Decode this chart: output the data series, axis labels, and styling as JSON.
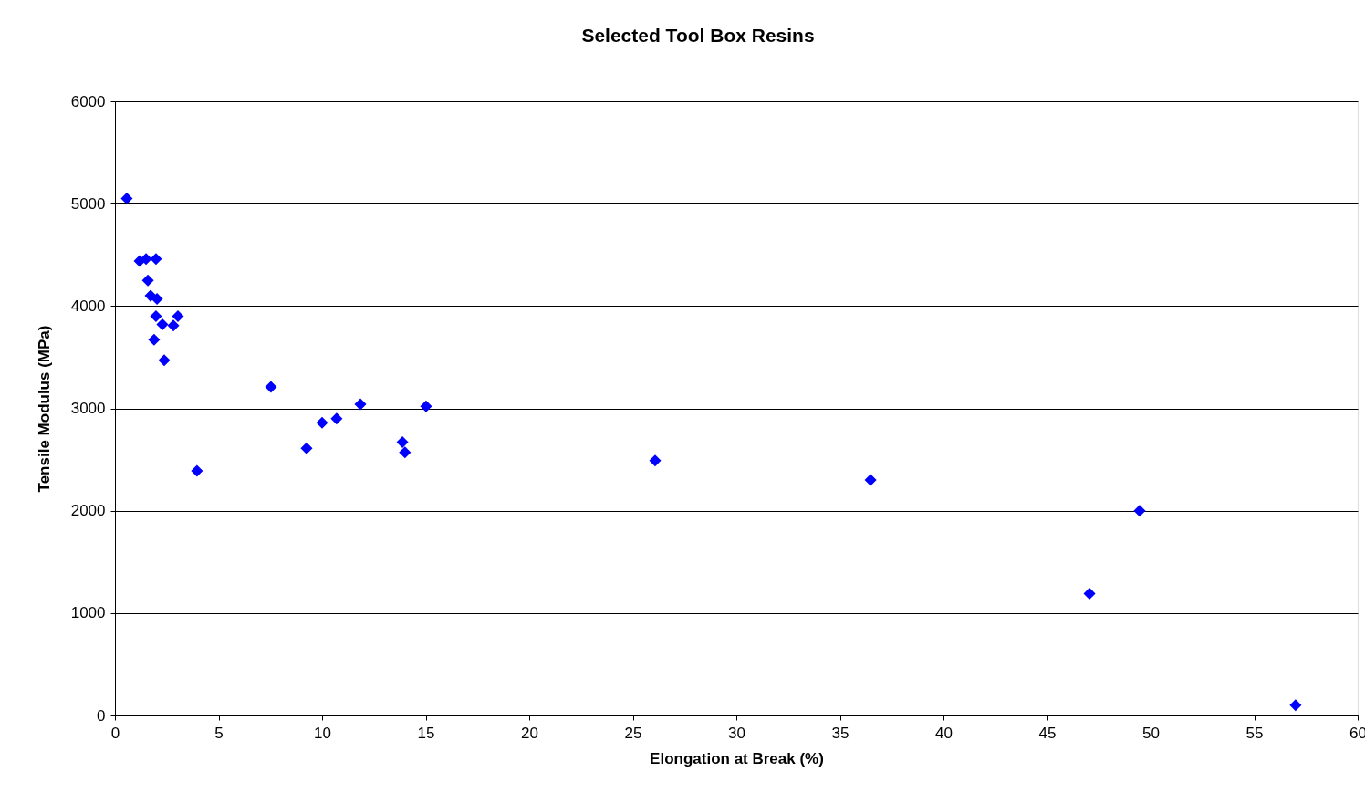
{
  "chart_data": {
    "type": "scatter",
    "title": "Selected Tool Box Resins",
    "xlabel": "Elongation at Break (%)",
    "ylabel": "Tensile Modulus (MPa)",
    "x": [
      0.57,
      1.19,
      1.5,
      1.98,
      1.59,
      1.72,
      2.03,
      1.98,
      2.29,
      2.82,
      3.04,
      1.89,
      2.38,
      3.96,
      7.53,
      9.25,
      10.0,
      10.7,
      11.85,
      13.88,
      14.0,
      15.02,
      26.08,
      36.48,
      47.05,
      49.47,
      57.0
    ],
    "series": [
      {
        "color": "#0000ff",
        "values": [
          5050,
          4440,
          4460,
          4460,
          4250,
          4100,
          4070,
          3900,
          3820,
          3810,
          3900,
          3670,
          3470,
          2390,
          3210,
          2610,
          2860,
          2900,
          3040,
          2670,
          2570,
          3020,
          2490,
          2300,
          1190,
          2000,
          100
        ]
      }
    ],
    "xlim": [
      0,
      60
    ],
    "xticks": [
      0,
      5,
      10,
      15,
      20,
      25,
      30,
      35,
      40,
      45,
      50,
      55,
      60
    ],
    "ylim": [
      0,
      6000
    ],
    "yticks": [
      0,
      1000,
      2000,
      3000,
      4000,
      5000,
      6000
    ],
    "grid": "y",
    "marker": "diamond"
  }
}
